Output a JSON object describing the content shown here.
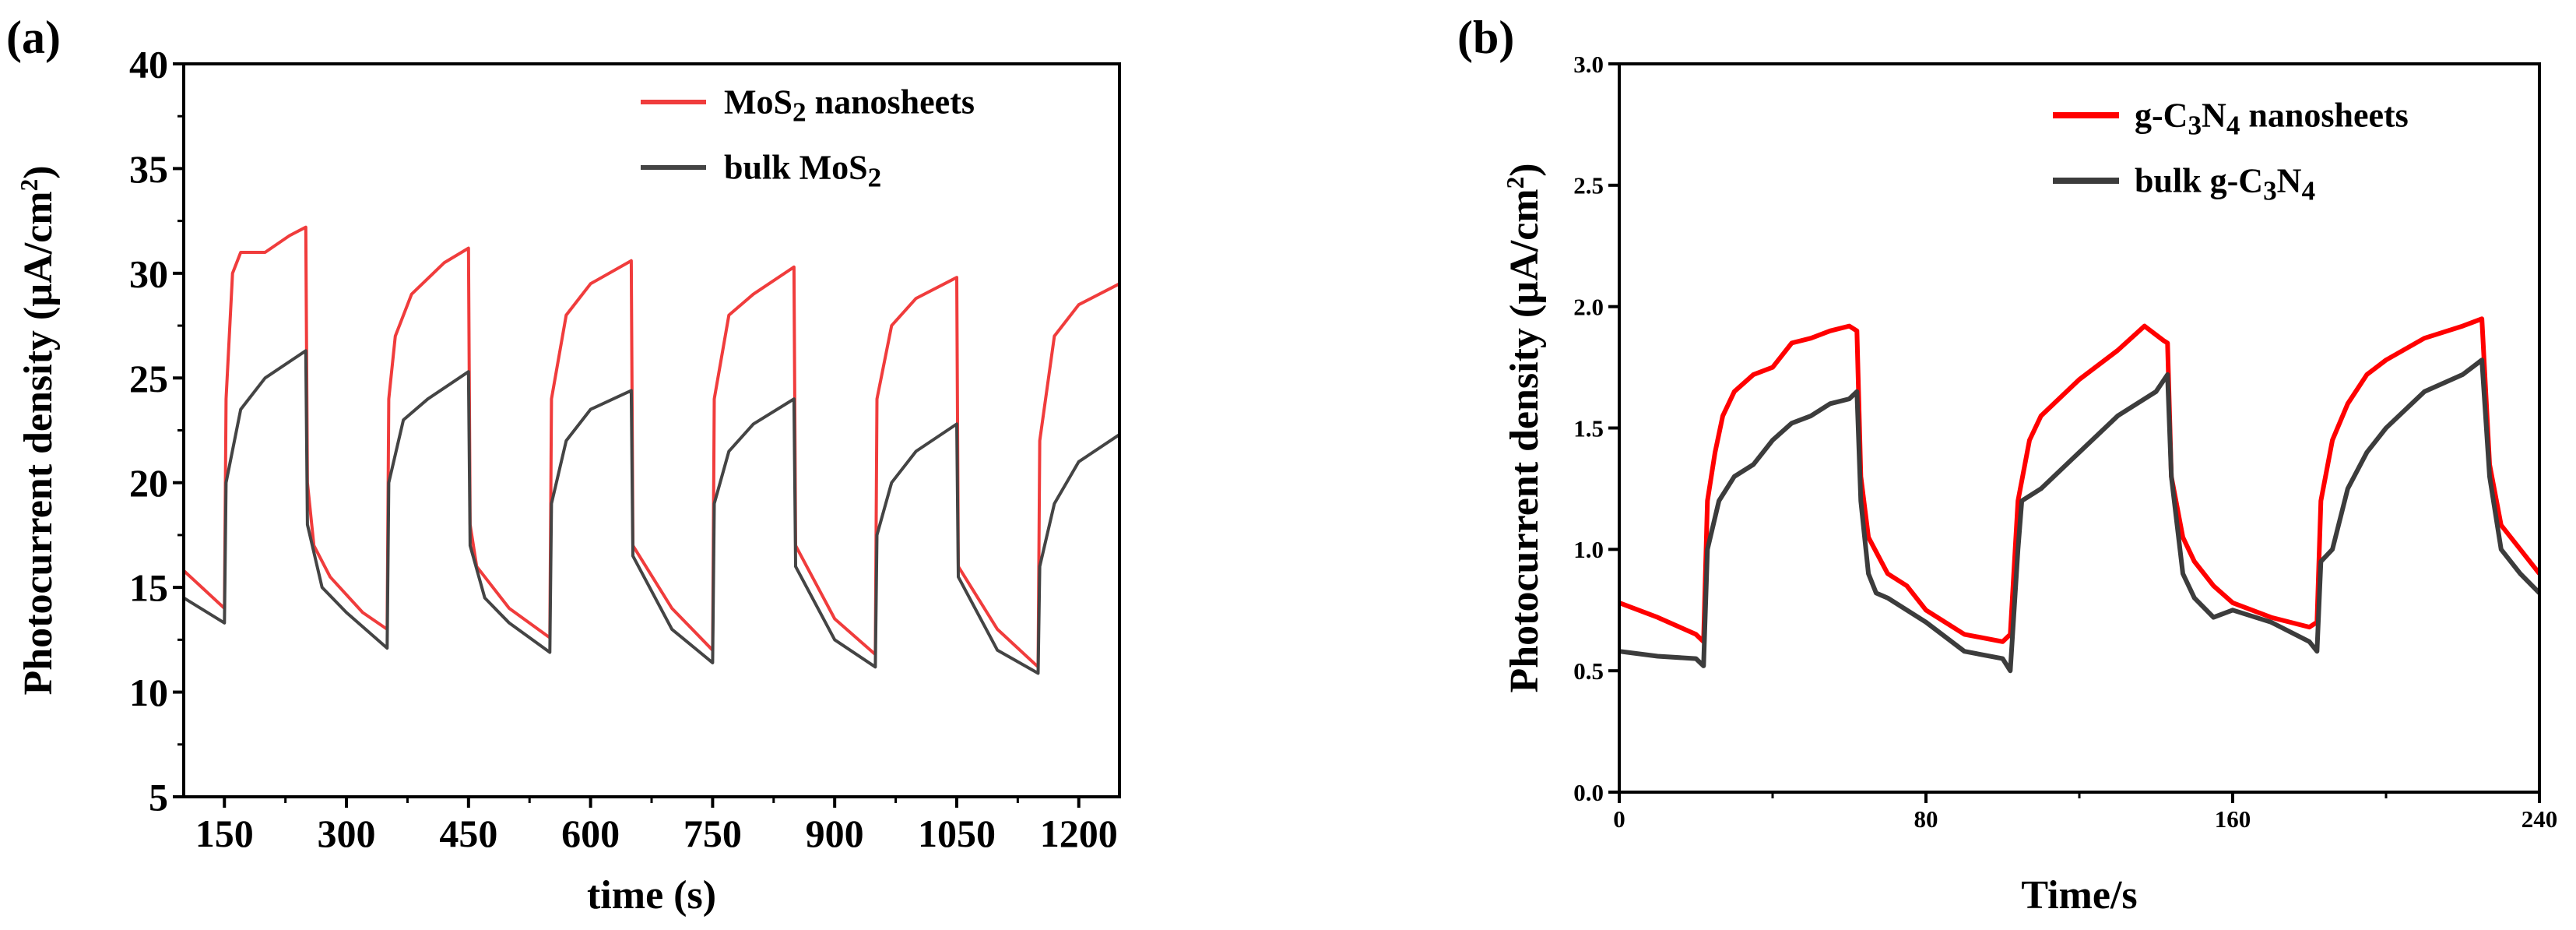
{
  "chart_data": [
    {
      "type": "line",
      "panel_label": "(a)",
      "xlabel": "time (s)",
      "ylabel": "Photocurrent density (µA/cm²)",
      "ylabel_main": "Photocurrent density (µA/cm",
      "ylabel_sup": "2",
      "ylabel_end": ")",
      "xlim": [
        100,
        1250
      ],
      "ylim": [
        5,
        40
      ],
      "xticks": [
        150,
        300,
        450,
        600,
        750,
        900,
        1050,
        1200
      ],
      "yticks": [
        5,
        10,
        15,
        20,
        25,
        30,
        35,
        40
      ],
      "grid": false,
      "legend_position": "top-right",
      "series": [
        {
          "name": "MoS2 nanosheets",
          "label_main": "MoS",
          "label_sub": "2",
          "label_end": " nanosheets",
          "color": "#f03c3c",
          "x": [
            100,
            150,
            152,
            160,
            170,
            200,
            230,
            250,
            252,
            260,
            280,
            320,
            350,
            352,
            360,
            380,
            420,
            450,
            452,
            460,
            500,
            550,
            552,
            570,
            600,
            650,
            652,
            700,
            750,
            752,
            770,
            800,
            850,
            852,
            900,
            950,
            952,
            970,
            1000,
            1050,
            1052,
            1100,
            1150,
            1152,
            1170,
            1200,
            1250
          ],
          "y": [
            15.8,
            14.0,
            24,
            30,
            31,
            31,
            31.8,
            32.2,
            20,
            17,
            15.5,
            13.8,
            13.0,
            24,
            27,
            29,
            30.5,
            31.2,
            18,
            16,
            14,
            12.6,
            24,
            28,
            29.5,
            30.6,
            17,
            14,
            12,
            24,
            28,
            29,
            30.3,
            17,
            13.5,
            11.8,
            24,
            27.5,
            28.8,
            29.8,
            16,
            13,
            11.2,
            22,
            27,
            28.5,
            29.5
          ]
        },
        {
          "name": "bulk MoS2",
          "label_main": "bulk MoS",
          "label_sub": "2",
          "label_end": "",
          "color": "#444444",
          "x": [
            100,
            150,
            152,
            170,
            200,
            250,
            252,
            270,
            300,
            350,
            352,
            370,
            400,
            450,
            452,
            470,
            500,
            550,
            552,
            570,
            600,
            650,
            652,
            700,
            750,
            752,
            770,
            800,
            850,
            852,
            900,
            950,
            952,
            970,
            1000,
            1050,
            1052,
            1100,
            1150,
            1152,
            1170,
            1200,
            1250
          ],
          "y": [
            14.5,
            13.3,
            20,
            23.5,
            25,
            26.3,
            18,
            15,
            13.8,
            12.1,
            20,
            23,
            24,
            25.3,
            17,
            14.5,
            13.3,
            11.9,
            19,
            22,
            23.5,
            24.4,
            16.5,
            13,
            11.4,
            19,
            21.5,
            22.8,
            24,
            16,
            12.5,
            11.2,
            17.5,
            20,
            21.5,
            22.8,
            15.5,
            12,
            10.9,
            16,
            19,
            21,
            22.3
          ]
        }
      ]
    },
    {
      "type": "line",
      "panel_label": "(b)",
      "xlabel": "Time/s",
      "ylabel": "Photocurrent density (µA/cm²)",
      "ylabel_main": "Photocurrent density (µA/cm",
      "ylabel_sup": "2",
      "ylabel_end": ")",
      "xlim": [
        0,
        240
      ],
      "ylim": [
        0,
        3
      ],
      "xticks": [
        0,
        80,
        160,
        240
      ],
      "yticks": [
        0.0,
        0.5,
        1.0,
        1.5,
        2.0,
        2.5,
        3.0
      ],
      "ytick_labels": [
        "0.0",
        "0.5",
        "1.0",
        "1.5",
        "2.0",
        "2.5",
        "3.0"
      ],
      "grid": false,
      "legend_position": "top-right",
      "series": [
        {
          "name": "g-C3N4 nanosheets",
          "label_parts": [
            "g-C",
            "3",
            "N",
            "4",
            " nanosheets"
          ],
          "color": "#ff0000",
          "x": [
            0,
            10,
            20,
            22,
            23,
            25,
            27,
            30,
            35,
            40,
            45,
            50,
            55,
            60,
            62,
            63,
            65,
            70,
            75,
            80,
            90,
            100,
            102,
            104,
            107,
            110,
            120,
            130,
            137,
            142,
            143,
            144,
            147,
            150,
            155,
            160,
            170,
            180,
            182,
            183,
            186,
            190,
            195,
            200,
            210,
            220,
            225,
            227,
            230,
            235,
            240
          ],
          "y": [
            0.78,
            0.72,
            0.65,
            0.62,
            1.2,
            1.4,
            1.55,
            1.65,
            1.72,
            1.75,
            1.85,
            1.87,
            1.9,
            1.92,
            1.9,
            1.3,
            1.05,
            0.9,
            0.85,
            0.75,
            0.65,
            0.62,
            0.65,
            1.2,
            1.45,
            1.55,
            1.7,
            1.82,
            1.92,
            1.86,
            1.85,
            1.3,
            1.05,
            0.95,
            0.85,
            0.78,
            0.72,
            0.68,
            0.7,
            1.2,
            1.45,
            1.6,
            1.72,
            1.78,
            1.87,
            1.92,
            1.95,
            1.35,
            1.1,
            1.0,
            0.9
          ]
        },
        {
          "name": "bulk g-C3N4",
          "label_parts": [
            "bulk g-C",
            "3",
            "N",
            "4",
            ""
          ],
          "color": "#3c3c3c",
          "x": [
            0,
            10,
            20,
            22,
            23,
            26,
            30,
            35,
            40,
            45,
            50,
            55,
            60,
            62,
            63,
            65,
            67,
            70,
            80,
            90,
            100,
            102,
            104,
            105,
            110,
            120,
            130,
            140,
            143,
            144,
            147,
            150,
            155,
            160,
            170,
            180,
            182,
            183,
            186,
            190,
            195,
            200,
            210,
            220,
            225,
            227,
            230,
            235,
            240
          ],
          "y": [
            0.58,
            0.56,
            0.55,
            0.52,
            1.0,
            1.2,
            1.3,
            1.35,
            1.45,
            1.52,
            1.55,
            1.6,
            1.62,
            1.65,
            1.2,
            0.9,
            0.82,
            0.8,
            0.7,
            0.58,
            0.55,
            0.5,
            1.0,
            1.2,
            1.25,
            1.4,
            1.55,
            1.65,
            1.72,
            1.3,
            0.9,
            0.8,
            0.72,
            0.75,
            0.7,
            0.62,
            0.58,
            0.95,
            1.0,
            1.25,
            1.4,
            1.5,
            1.65,
            1.72,
            1.78,
            1.3,
            1.0,
            0.9,
            0.82
          ]
        }
      ]
    }
  ]
}
